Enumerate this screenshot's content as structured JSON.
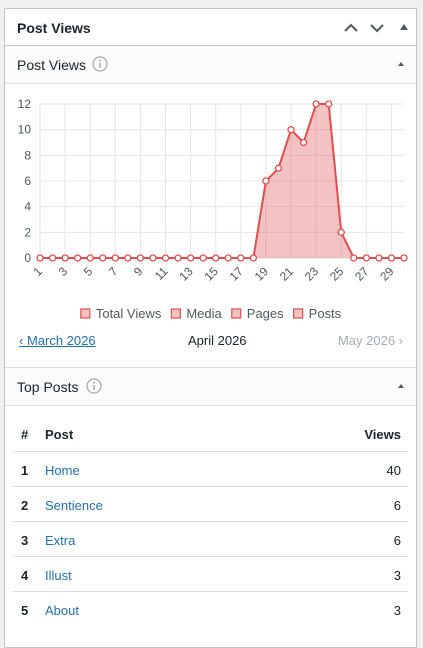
{
  "header": {
    "title": "Post Views"
  },
  "post_views": {
    "title": "Post Views",
    "chart_data": {
      "type": "line",
      "x": [
        1,
        2,
        3,
        4,
        5,
        6,
        7,
        8,
        9,
        10,
        11,
        12,
        13,
        14,
        15,
        16,
        17,
        18,
        19,
        20,
        21,
        22,
        23,
        24,
        25,
        26,
        27,
        28,
        29,
        30
      ],
      "xlim": [
        1,
        30
      ],
      "xticks": [
        1,
        3,
        5,
        7,
        9,
        11,
        13,
        15,
        17,
        19,
        21,
        23,
        25,
        27,
        29
      ],
      "ylim": [
        0,
        12
      ],
      "yticks": [
        0,
        2,
        4,
        6,
        8,
        10,
        12
      ],
      "grid": true,
      "legend": "bottom",
      "series": [
        {
          "name": "Total Views",
          "color": "#e04f4f",
          "values": [
            0,
            0,
            0,
            0,
            0,
            0,
            0,
            0,
            0,
            0,
            0,
            0,
            0,
            0,
            0,
            0,
            0,
            0,
            6,
            7,
            10,
            9,
            12,
            12,
            2,
            0,
            0,
            0,
            0,
            0
          ]
        },
        {
          "name": "Media",
          "color": "#e04f4f"
        },
        {
          "name": "Pages",
          "color": "#e04f4f"
        },
        {
          "name": "Posts",
          "color": "#e04f4f"
        }
      ]
    },
    "nav": {
      "prev": "‹ March 2026",
      "current": "April 2026",
      "next": "May 2026 ›"
    }
  },
  "top_posts": {
    "title": "Top Posts",
    "table": {
      "columns": [
        "#",
        "Post",
        "Views"
      ],
      "rows": [
        [
          1,
          "Home",
          40
        ],
        [
          2,
          "Sentience",
          6
        ],
        [
          3,
          "Extra",
          6
        ],
        [
          4,
          "Illust",
          3
        ],
        [
          5,
          "About",
          3
        ]
      ]
    }
  }
}
